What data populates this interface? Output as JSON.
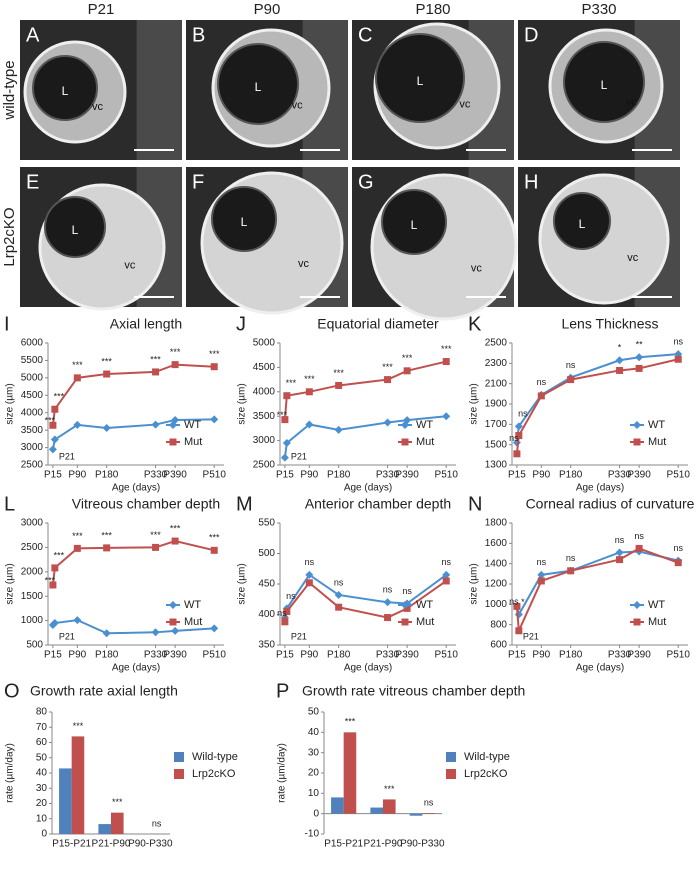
{
  "figure": {
    "column_headers": [
      "P21",
      "P90",
      "P180",
      "P330"
    ],
    "row_labels": [
      "wild-type",
      "Lrp2cKO"
    ],
    "images": [
      {
        "letter": "A",
        "lens": "L",
        "vitreous": "vc"
      },
      {
        "letter": "B",
        "lens": "L",
        "vitreous": "vc"
      },
      {
        "letter": "C",
        "lens": "L",
        "vitreous": "vc"
      },
      {
        "letter": "D",
        "lens": "L",
        "vitreous": "vc"
      },
      {
        "letter": "E",
        "lens": "L",
        "vitreous": "vc"
      },
      {
        "letter": "F",
        "lens": "L",
        "vitreous": "vc"
      },
      {
        "letter": "G",
        "lens": "L",
        "vitreous": "vc"
      },
      {
        "letter": "H",
        "lens": "L",
        "vitreous": "vc"
      }
    ]
  },
  "chart_data": [
    {
      "type": "line",
      "panel": "I",
      "title": "Axial length",
      "xlabel": "Age (days)",
      "ylabel": "size (µm)",
      "annotation": "P21",
      "x": [
        15,
        21,
        90,
        180,
        330,
        390,
        510
      ],
      "xlim": [
        0,
        540
      ],
      "xticks": [
        {
          "value": 15,
          "label": "P15"
        },
        {
          "value": 90,
          "label": "P90"
        },
        {
          "value": 180,
          "label": "P180"
        },
        {
          "value": 330,
          "label": "P330"
        },
        {
          "value": 390,
          "label": "P390"
        },
        {
          "value": 510,
          "label": "P510"
        }
      ],
      "ylim": [
        2500,
        6000
      ],
      "yticks": [
        2500,
        3000,
        3500,
        4000,
        4500,
        5000,
        5500,
        6000
      ],
      "legend": "lower right",
      "series": [
        {
          "name": "WT",
          "color": "#4a8fcf",
          "values": [
            2950,
            3230,
            3650,
            3560,
            3660,
            3790,
            3810
          ]
        },
        {
          "name": "Mut",
          "color": "#c0504d",
          "values": [
            3640,
            4100,
            5000,
            5110,
            5170,
            5380,
            5320
          ]
        }
      ],
      "significance": [
        "***",
        "***",
        "***",
        "***",
        "***",
        "***",
        "***"
      ]
    },
    {
      "type": "line",
      "panel": "J",
      "title": "Equatorial diameter",
      "xlabel": "Age (days)",
      "ylabel": "size (µm)",
      "annotation": "P21",
      "x": [
        15,
        21,
        90,
        180,
        330,
        390,
        510
      ],
      "xlim": [
        0,
        540
      ],
      "xticks": [
        {
          "value": 15,
          "label": "P15"
        },
        {
          "value": 90,
          "label": "P90"
        },
        {
          "value": 180,
          "label": "P180"
        },
        {
          "value": 330,
          "label": "P330"
        },
        {
          "value": 390,
          "label": "P390"
        },
        {
          "value": 510,
          "label": "P510"
        }
      ],
      "ylim": [
        2500,
        5000
      ],
      "yticks": [
        2500,
        3000,
        3500,
        4000,
        4500,
        5000
      ],
      "legend": "lower right",
      "series": [
        {
          "name": "WT",
          "color": "#4a8fcf",
          "values": [
            2650,
            2950,
            3330,
            3220,
            3370,
            3420,
            3500
          ]
        },
        {
          "name": "Mut",
          "color": "#c0504d",
          "values": [
            3430,
            3920,
            4000,
            4130,
            4250,
            4430,
            4620
          ]
        }
      ],
      "significance": [
        "***",
        "***",
        "***",
        "***",
        "***",
        "***",
        "***"
      ]
    },
    {
      "type": "line",
      "panel": "K",
      "title": "Lens Thickness",
      "xlabel": "Age (days)",
      "ylabel": "size (µm)",
      "x": [
        15,
        21,
        90,
        180,
        330,
        390,
        510
      ],
      "xlim": [
        0,
        540
      ],
      "xticks": [
        {
          "value": 15,
          "label": "P15"
        },
        {
          "value": 90,
          "label": "P90"
        },
        {
          "value": 180,
          "label": "P180"
        },
        {
          "value": 330,
          "label": "P330"
        },
        {
          "value": 390,
          "label": "P390"
        },
        {
          "value": 510,
          "label": "P510"
        }
      ],
      "ylim": [
        1300,
        2500
      ],
      "yticks": [
        1300,
        1500,
        1700,
        1900,
        2100,
        2300,
        2500
      ],
      "legend": "lower right",
      "series": [
        {
          "name": "WT",
          "color": "#4a8fcf",
          "values": [
            1520,
            1680,
            1990,
            2160,
            2330,
            2360,
            2390
          ]
        },
        {
          "name": "Mut",
          "color": "#c0504d",
          "values": [
            1410,
            1590,
            1980,
            2140,
            2230,
            2250,
            2340
          ]
        }
      ],
      "significance": [
        "ns",
        "ns",
        "ns",
        "ns",
        "*",
        "**",
        "ns"
      ]
    },
    {
      "type": "line",
      "panel": "L",
      "title": "Vitreous chamber depth",
      "xlabel": "Age (days)",
      "ylabel": "size (µm)",
      "annotation": "P21",
      "x": [
        15,
        21,
        90,
        180,
        330,
        390,
        510
      ],
      "xlim": [
        0,
        540
      ],
      "xticks": [
        {
          "value": 15,
          "label": "P15"
        },
        {
          "value": 90,
          "label": "P90"
        },
        {
          "value": 180,
          "label": "P180"
        },
        {
          "value": 330,
          "label": "P330"
        },
        {
          "value": 390,
          "label": "P390"
        },
        {
          "value": 510,
          "label": "P510"
        }
      ],
      "ylim": [
        500,
        3000
      ],
      "yticks": [
        500,
        1000,
        1500,
        2000,
        2500,
        3000
      ],
      "legend": "lower right",
      "series": [
        {
          "name": "WT",
          "color": "#4a8fcf",
          "values": [
            910,
            950,
            1010,
            740,
            760,
            790,
            840
          ]
        },
        {
          "name": "Mut",
          "color": "#c0504d",
          "values": [
            1730,
            2080,
            2480,
            2490,
            2500,
            2630,
            2440
          ]
        }
      ],
      "significance": [
        "***",
        "***",
        "***",
        "***",
        "***",
        "***",
        "***"
      ]
    },
    {
      "type": "line",
      "panel": "M",
      "title": "Anterior chamber depth",
      "xlabel": "Age (days)",
      "ylabel": "size (µm)",
      "annotation": "P21",
      "x": [
        15,
        21,
        90,
        180,
        330,
        390,
        510
      ],
      "xlim": [
        0,
        540
      ],
      "xticks": [
        {
          "value": 15,
          "label": "P15"
        },
        {
          "value": 90,
          "label": "P90"
        },
        {
          "value": 180,
          "label": "P180"
        },
        {
          "value": 330,
          "label": "P330"
        },
        {
          "value": 390,
          "label": "P390"
        },
        {
          "value": 510,
          "label": "P510"
        }
      ],
      "ylim": [
        350,
        550
      ],
      "yticks": [
        350,
        400,
        450,
        500,
        550
      ],
      "legend": "lower right",
      "series": [
        {
          "name": "WT",
          "color": "#4a8fcf",
          "values": [
            395,
            410,
            465,
            432,
            420,
            418,
            465
          ]
        },
        {
          "name": "Mut",
          "color": "#c0504d",
          "values": [
            388,
            405,
            452,
            412,
            395,
            410,
            455
          ]
        }
      ],
      "significance": [
        "ns",
        "ns",
        "ns",
        "ns",
        "ns",
        "ns",
        "ns"
      ]
    },
    {
      "type": "line",
      "panel": "N",
      "title": "Corneal radius of curvature",
      "xlabel": "Age (days)",
      "ylabel": "size (µm)",
      "annotation": "P21",
      "x": [
        15,
        21,
        90,
        180,
        330,
        390,
        510
      ],
      "xlim": [
        0,
        540
      ],
      "xticks": [
        {
          "value": 15,
          "label": "P15"
        },
        {
          "value": 90,
          "label": "P90"
        },
        {
          "value": 180,
          "label": "P180"
        },
        {
          "value": 330,
          "label": "P330"
        },
        {
          "value": 390,
          "label": "P390"
        },
        {
          "value": 510,
          "label": "P510"
        }
      ],
      "ylim": [
        600,
        1800
      ],
      "yticks": [
        600,
        800,
        1000,
        1200,
        1400,
        1600,
        1800
      ],
      "legend": "lower right",
      "series": [
        {
          "name": "WT",
          "color": "#4a8fcf",
          "values": [
            980,
            900,
            1290,
            1330,
            1510,
            1520,
            1430
          ]
        },
        {
          "name": "Mut",
          "color": "#c0504d",
          "values": [
            980,
            740,
            1230,
            1330,
            1440,
            1550,
            1410
          ]
        }
      ],
      "significance": [
        "ns",
        "*",
        "ns",
        "ns",
        "ns",
        "ns",
        "ns"
      ]
    },
    {
      "type": "bar",
      "panel": "O",
      "title": "Growth rate axial length",
      "ylabel": "rate (µm/day)",
      "categories": [
        "P15-P21",
        "P21-P90",
        "P90-P330"
      ],
      "ylim": [
        0,
        80
      ],
      "yticks": [
        0,
        10,
        20,
        30,
        40,
        50,
        60,
        70,
        80
      ],
      "legend": "right",
      "series": [
        {
          "name": "Wild-type",
          "color": "#4f81bd",
          "values": [
            43,
            6.5,
            0
          ]
        },
        {
          "name": "Lrp2cKO",
          "color": "#c0504d",
          "values": [
            64,
            14,
            0
          ]
        }
      ],
      "significance": [
        "***",
        "***",
        "ns"
      ]
    },
    {
      "type": "bar",
      "panel": "P",
      "title": "Growth rate vitreous chamber depth",
      "ylabel": "rate (µm/day)",
      "categories": [
        "P15-P21",
        "P21-P90",
        "P90-P330"
      ],
      "ylim": [
        -10,
        50
      ],
      "yticks": [
        -10,
        0,
        10,
        20,
        30,
        40,
        50
      ],
      "legend": "right",
      "series": [
        {
          "name": "Wild-type",
          "color": "#4f81bd",
          "values": [
            8,
            3,
            -1
          ]
        },
        {
          "name": "Lrp2cKO",
          "color": "#c0504d",
          "values": [
            40,
            7,
            0.3
          ]
        }
      ],
      "significance": [
        "***",
        "***",
        "ns"
      ]
    }
  ]
}
